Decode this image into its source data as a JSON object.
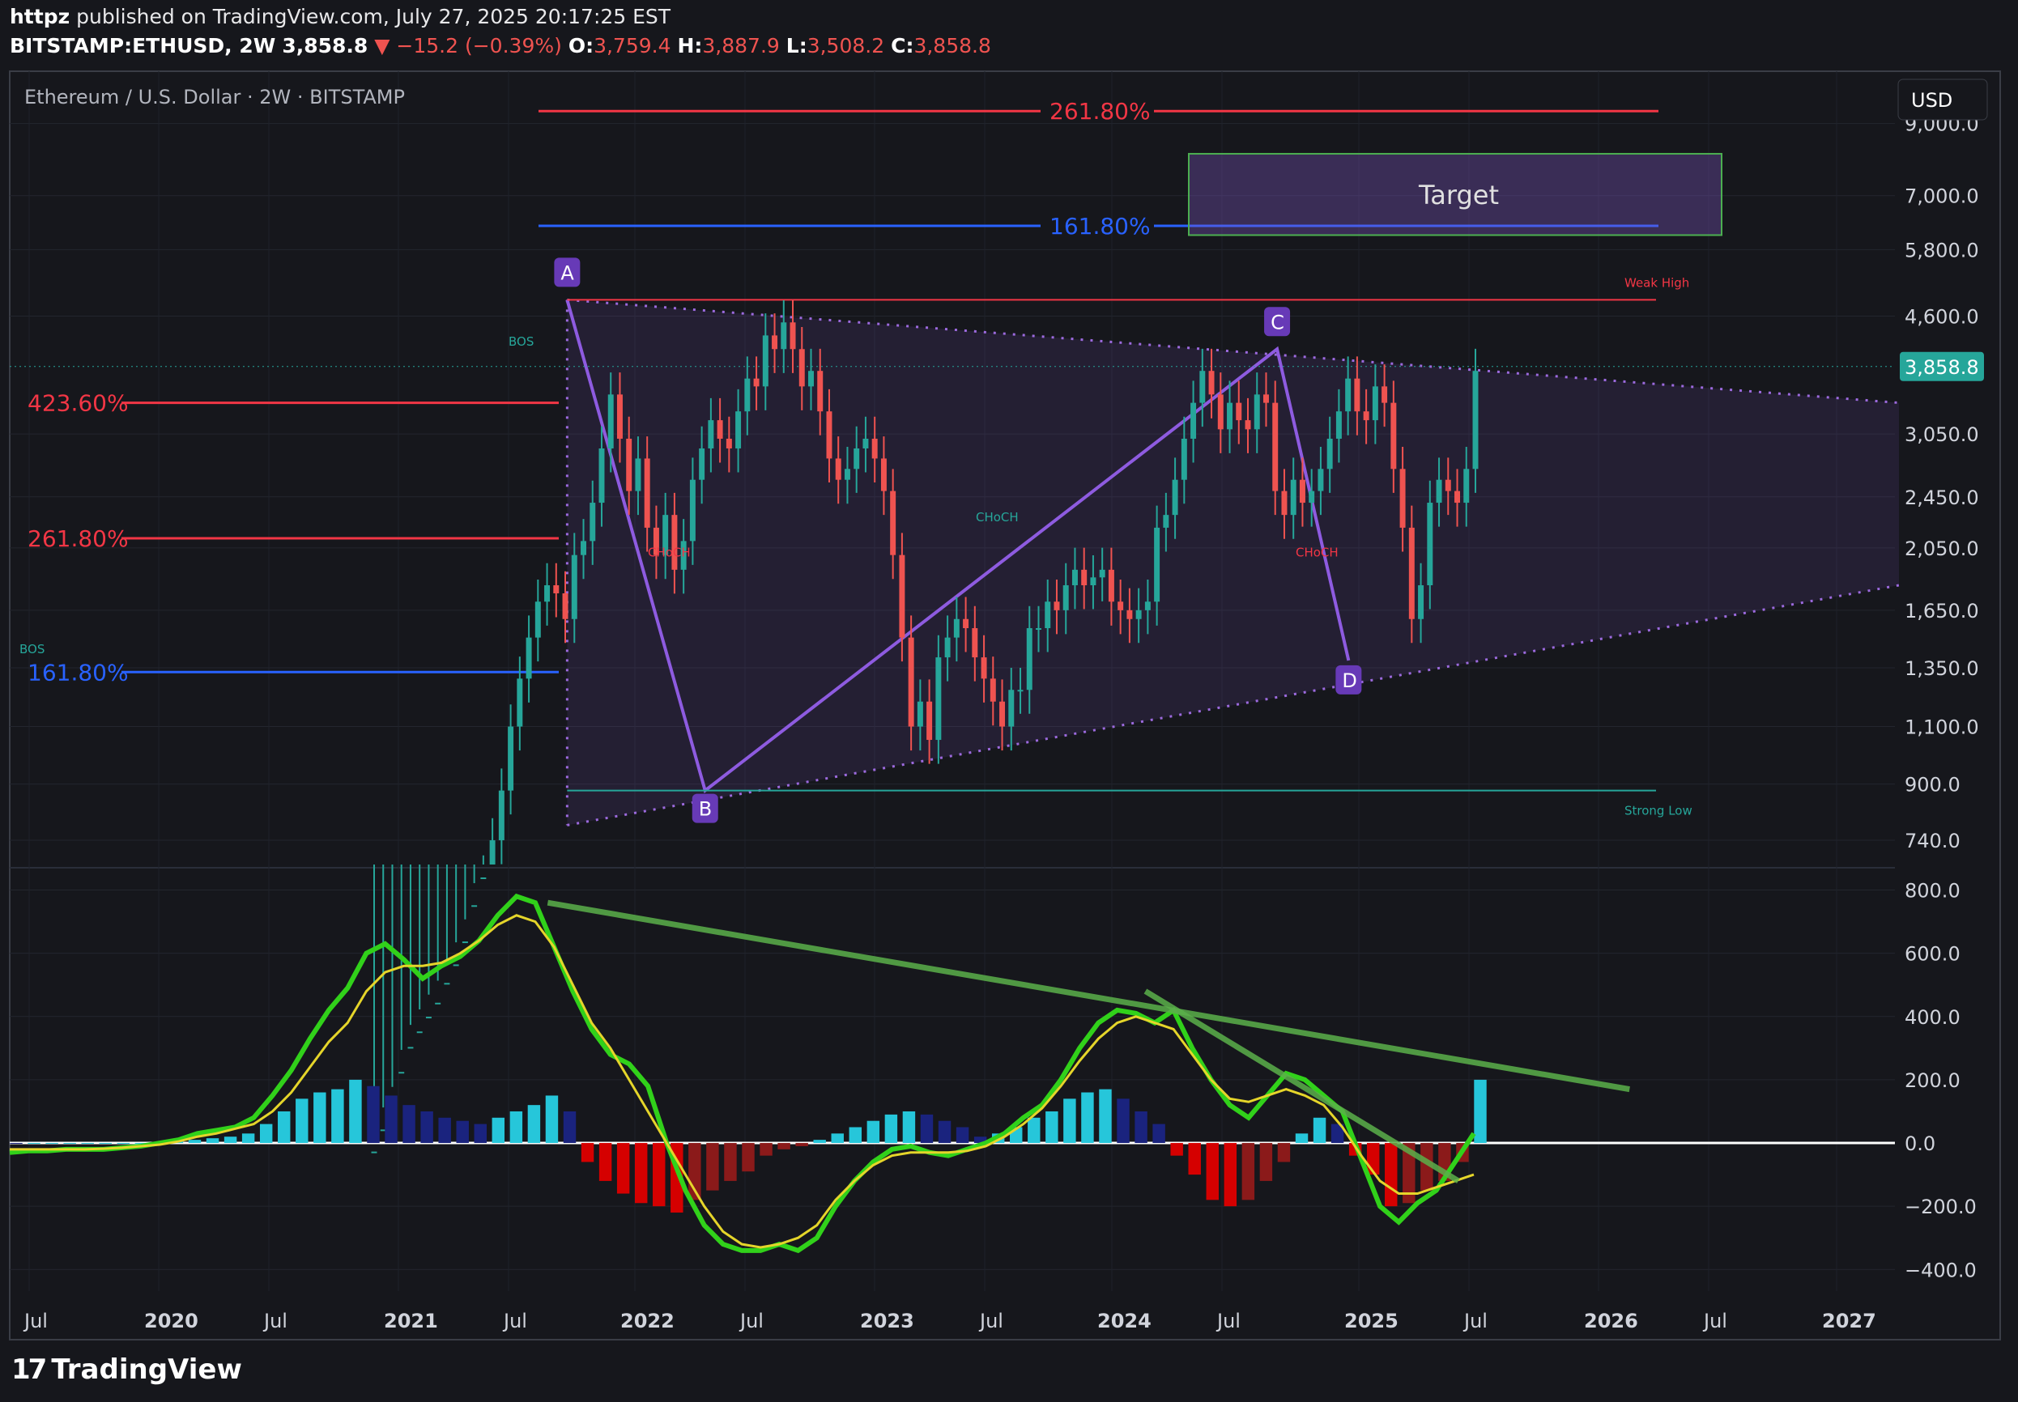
{
  "header": {
    "publisher": "httpz",
    "published_text": "published on TradingView.com, July 27, 2025 20:17:25 EST",
    "symbol": "BITSTAMP:ETHUSD, 2W",
    "last": "3,858.8",
    "change": "▼ −15.2 (−0.39%)",
    "o_label": "O:",
    "o": "3,759.4",
    "h_label": "H:",
    "h": "3,887.9",
    "l_label": "L:",
    "l": "3,508.2",
    "c_label": "C:",
    "c": "3,858.8"
  },
  "pane_title": "Ethereum / U.S. Dollar · 2W · BITSTAMP",
  "currency_button": "USD",
  "brand": "TradingView",
  "colors": {
    "up": "#26a69a",
    "down": "#ef5350",
    "accent": "#7e57c2",
    "background": "#16171c"
  },
  "chart_data": [
    {
      "type": "candlestick",
      "title": "Ethereum / U.S. Dollar · 2W · BITSTAMP",
      "y_scale": "log",
      "y_ticks": [
        740,
        900,
        1100,
        1350,
        1650,
        2050,
        2450,
        3050,
        4600,
        5800,
        7000,
        9000
      ],
      "y_tick_labels": [
        "740.0",
        "900.0",
        "1,100.0",
        "1,350.0",
        "1,650.0",
        "2,050.0",
        "2,450.0",
        "3,050.0",
        "4,600.0",
        "5,800.0",
        "7,000.0",
        "9,000.0"
      ],
      "ylim": [
        680,
        10500
      ],
      "last_price": 3858.8,
      "last_price_label": "3,858.8",
      "x_labels": [
        "Jul",
        "2020",
        "Jul",
        "2021",
        "Jul",
        "2022",
        "Jul",
        "2023",
        "Jul",
        "2024",
        "Jul",
        "2025",
        "Jul",
        "2026",
        "Jul",
        "2027"
      ],
      "swing_points": [
        {
          "label": "A",
          "date": "2021-11-10",
          "price": 4868
        },
        {
          "label": "B",
          "date": "2022-06-18",
          "price": 880
        },
        {
          "label": "C",
          "date": "2024-12-16",
          "price": 4100
        },
        {
          "label": "D",
          "date": "2025-04-09",
          "price": 1385
        }
      ],
      "fib_left": [
        {
          "label": "423.60%",
          "price": 3400
        },
        {
          "label": "261.80%",
          "price": 2120
        },
        {
          "label": "161.80%",
          "price": 1330
        }
      ],
      "fib_target": [
        {
          "label": "261.80%",
          "price": 9400
        },
        {
          "label": "161.80%",
          "price": 6300
        }
      ],
      "target_box": {
        "label": "Target",
        "price_top": 8100,
        "price_bottom": 6100
      },
      "levels": [
        {
          "label": "Weak High",
          "price": 4868
        },
        {
          "label": "Strong Low",
          "price": 880
        }
      ],
      "structure_labels": [
        {
          "label": "BOS",
          "date": "2021-06-20",
          "price": 4150
        },
        {
          "label": "BOS",
          "date": "2019-06-01",
          "price": 1420
        },
        {
          "label": "CHoCH",
          "date": "2022-01-15",
          "price": 1990
        },
        {
          "label": "CHoCH",
          "date": "2023-09-15",
          "price": 2250
        },
        {
          "label": "CHoCH",
          "date": "2024-11-15",
          "price": 1990
        }
      ],
      "candles_close": [
        250,
        270,
        290,
        330,
        360,
        380,
        400,
        420,
        450,
        480,
        520,
        590,
        650,
        740,
        880,
        1100,
        1300,
        1500,
        1700,
        1800,
        1750,
        1600,
        2000,
        2100,
        2400,
        2900,
        3500,
        3000,
        2500,
        2800,
        2200,
        2000,
        2300,
        1900,
        2100,
        2600,
        2900,
        3200,
        3000,
        2900,
        3300,
        3700,
        3600,
        4300,
        4100,
        4500,
        4100,
        3600,
        3800,
        3300,
        2800,
        2600,
        2700,
        2900,
        3000,
        2800,
        2500,
        2000,
        1500,
        1100,
        1200,
        1050,
        1400,
        1500,
        1600,
        1550,
        1400,
        1300,
        1200,
        1100,
        1250,
        1250,
        1550,
        1550,
        1700,
        1650,
        1800,
        1900,
        1800,
        1850,
        1900,
        1700,
        1650,
        1600,
        1650,
        1700,
        2200,
        2300,
        2600,
        3000,
        3400,
        3800,
        3500,
        3100,
        3400,
        3200,
        3100,
        3500,
        3400,
        2500,
        2300,
        2600,
        2400,
        2500,
        2700,
        3000,
        3300,
        3700,
        3300,
        3200,
        3600,
        3400,
        2700,
        2200,
        1600,
        1800,
        2400,
        2600,
        2500,
        2400,
        2700,
        3800
      ]
    },
    {
      "type": "line",
      "title": "",
      "ylim": [
        -430,
        850
      ],
      "y_ticks": [
        -400,
        -200,
        0,
        200,
        400,
        600,
        800
      ],
      "y_tick_labels": [
        "−400.0",
        "−200.0",
        "0.0",
        "200.0",
        "400.0",
        "600.0",
        "800.0"
      ],
      "series": [
        {
          "values": [
            -30,
            -25,
            -25,
            -20,
            -20,
            -20,
            -15,
            -10,
            0,
            10,
            30,
            40,
            50,
            80,
            150,
            230,
            330,
            420,
            490,
            600,
            630,
            580,
            520,
            560,
            590,
            640,
            720,
            780,
            760,
            620,
            480,
            360,
            280,
            250,
            180,
            0,
            -150,
            -260,
            -320,
            -340,
            -340,
            -320,
            -340,
            -300,
            -200,
            -120,
            -60,
            -20,
            -10,
            -30,
            -40,
            -20,
            0,
            30,
            80,
            120,
            200,
            300,
            380,
            420,
            410,
            380,
            420,
            300,
            200,
            120,
            80,
            150,
            220,
            200,
            150,
            100,
            -50,
            -200,
            -250,
            -190,
            -150,
            -60,
            30
          ]
        },
        {
          "values": [
            -20,
            -20,
            -20,
            -20,
            -20,
            -18,
            -15,
            -10,
            -5,
            5,
            20,
            30,
            45,
            60,
            100,
            160,
            240,
            320,
            380,
            480,
            540,
            560,
            560,
            570,
            600,
            640,
            690,
            720,
            700,
            620,
            500,
            380,
            300,
            200,
            100,
            0,
            -100,
            -200,
            -280,
            -320,
            -330,
            -320,
            -300,
            -260,
            -180,
            -120,
            -70,
            -40,
            -30,
            -30,
            -30,
            -25,
            -10,
            20,
            60,
            110,
            180,
            260,
            330,
            380,
            400,
            380,
            360,
            280,
            200,
            140,
            130,
            150,
            170,
            150,
            120,
            50,
            -40,
            -120,
            -160,
            -160,
            -140,
            -120,
            -100
          ]
        }
      ],
      "histogram": [
        0,
        0,
        0,
        0,
        0,
        0,
        0,
        0,
        0,
        5,
        10,
        15,
        20,
        30,
        60,
        100,
        140,
        160,
        170,
        200,
        180,
        150,
        120,
        100,
        80,
        70,
        60,
        80,
        100,
        120,
        150,
        100,
        -60,
        -120,
        -160,
        -190,
        -200,
        -220,
        -180,
        -150,
        -120,
        -90,
        -40,
        -20,
        -10,
        10,
        30,
        50,
        70,
        90,
        100,
        90,
        70,
        50,
        20,
        30,
        50,
        80,
        100,
        140,
        160,
        170,
        140,
        100,
        60,
        -40,
        -100,
        -180,
        -200,
        -180,
        -120,
        -60,
        30,
        80,
        60,
        -40,
        -100,
        -200,
        -190,
        -150,
        -120,
        -60,
        200
      ],
      "trendlines": [
        {
          "from": [
            "2021-10-10",
            760
          ],
          "to": [
            "2026-07-01",
            170
          ]
        },
        {
          "from": [
            "2024-05-20",
            480
          ],
          "to": [
            "2025-10-01",
            -120
          ]
        }
      ]
    }
  ]
}
